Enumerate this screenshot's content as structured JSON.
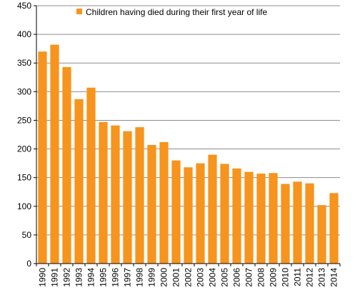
{
  "chart_data": {
    "type": "bar",
    "categories": [
      "1990",
      "1991",
      "1992",
      "1993",
      "1994",
      "1995",
      "1996",
      "1997",
      "1998",
      "1999",
      "2000",
      "2001",
      "2002",
      "2003",
      "2004",
      "2005",
      "2006",
      "2007",
      "2008",
      "2009",
      "2010",
      "2011",
      "2012",
      "2013",
      "2014"
    ],
    "series": [
      {
        "name": "Children having died during their first year of life",
        "values": [
          370,
          382,
          343,
          287,
          307,
          247,
          241,
          231,
          238,
          207,
          212,
          180,
          168,
          175,
          190,
          174,
          166,
          160,
          157,
          158,
          139,
          143,
          140,
          102,
          123
        ]
      }
    ],
    "ylim": [
      0,
      450
    ],
    "yticks": [
      0,
      50,
      100,
      150,
      200,
      250,
      300,
      350,
      400,
      450
    ],
    "grid": true,
    "legend_position": "top",
    "colors": {
      "bar": "#F7941D",
      "grid": "#8C8C8C",
      "axis": "#000000"
    }
  }
}
